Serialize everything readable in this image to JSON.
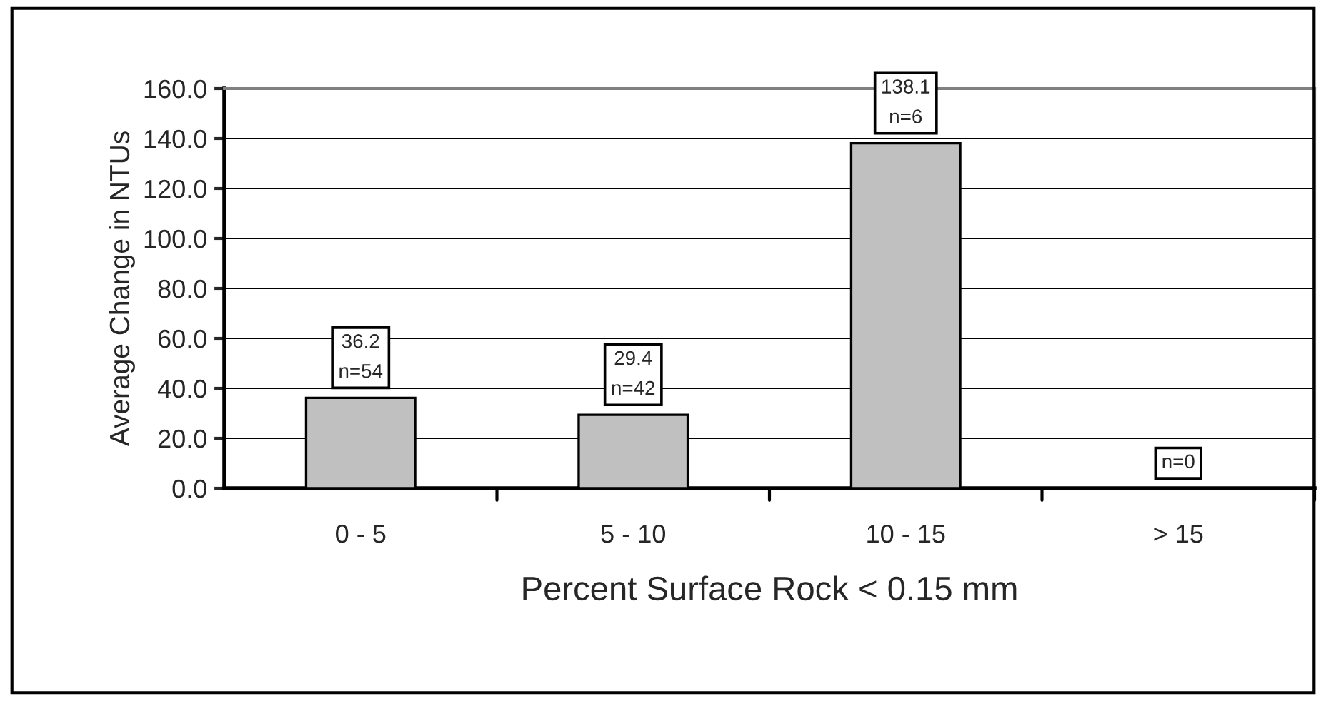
{
  "chart_data": {
    "type": "bar",
    "xlabel": "Percent Surface Rock < 0.15 mm",
    "ylabel": "Average Change in NTUs",
    "categories": [
      "0 - 5",
      "5 - 10",
      "10 - 15",
      "> 15"
    ],
    "values": [
      36.2,
      29.4,
      138.1,
      null
    ],
    "value_labels": [
      "36.2\nn=54",
      "29.4\nn=42",
      "138.1\nn=6",
      "n=0"
    ],
    "color": "#c0c0c0",
    "ylim": [
      0,
      160
    ],
    "yticks": [
      {
        "value": 0,
        "label": "0.0"
      },
      {
        "value": 20,
        "label": "20.0"
      },
      {
        "value": 40,
        "label": "40.0"
      },
      {
        "value": 60,
        "label": "60.0"
      },
      {
        "value": 80,
        "label": "80.0"
      },
      {
        "value": 100,
        "label": "100.0"
      },
      {
        "value": 120,
        "label": "120.0"
      },
      {
        "value": 140,
        "label": "140.0"
      },
      {
        "value": 160,
        "label": "160.0"
      }
    ],
    "grid": "y",
    "legend": false
  }
}
